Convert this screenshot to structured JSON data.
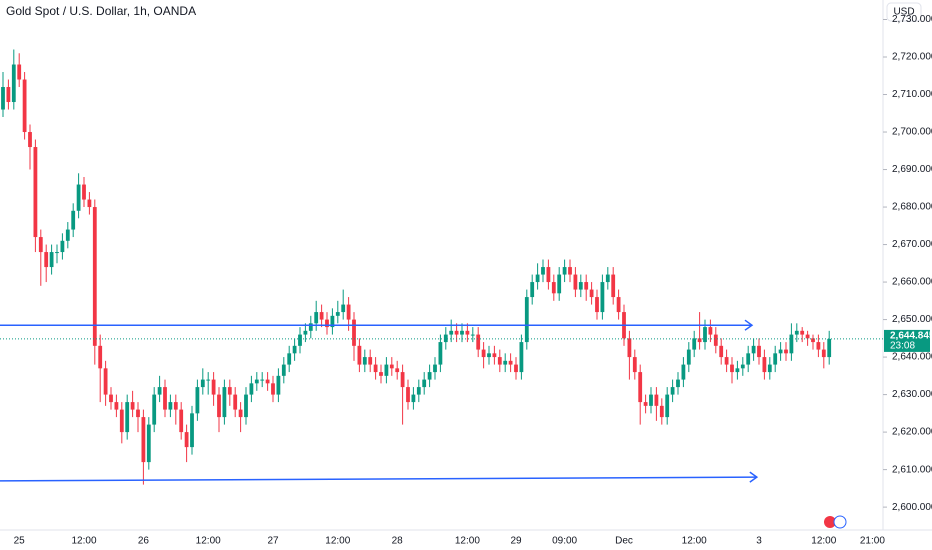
{
  "chart_data": {
    "type": "candlestick",
    "title": "Gold Spot / U.S. Dollar, 1h, OANDA",
    "currency": "USD",
    "up_color": "#089981",
    "down_color": "#f23645",
    "drawing_color": "#2962ff",
    "categories": [
      null,
      null,
      null,
      "25",
      null,
      null,
      null,
      null,
      null,
      null,
      null,
      null,
      null,
      null,
      null,
      "12:00",
      null,
      null,
      null,
      null,
      null,
      null,
      null,
      null,
      null,
      null,
      "26",
      null,
      null,
      null,
      null,
      null,
      null,
      null,
      null,
      null,
      null,
      null,
      "12:00",
      null,
      null,
      null,
      null,
      null,
      null,
      null,
      null,
      null,
      null,
      null,
      "27",
      null,
      null,
      null,
      null,
      null,
      null,
      null,
      null,
      null,
      null,
      null,
      "12:00",
      null,
      null,
      null,
      null,
      null,
      null,
      null,
      null,
      null,
      null,
      "28",
      null,
      null,
      null,
      null,
      null,
      null,
      null,
      null,
      null,
      null,
      null,
      null,
      "12:00",
      null,
      null,
      null,
      null,
      null,
      null,
      null,
      null,
      "29",
      null,
      null,
      null,
      null,
      null,
      null,
      null,
      null,
      "09:00",
      null,
      null,
      null,
      null,
      null,
      null,
      null,
      null,
      null,
      null,
      "Dec",
      null,
      null,
      null,
      null,
      null,
      null,
      null,
      null,
      null,
      null,
      null,
      null,
      "12:00",
      null,
      null,
      null,
      null,
      null,
      null,
      null,
      null,
      null,
      null,
      null,
      "3",
      null,
      null,
      null,
      null,
      null,
      null,
      null,
      null,
      null,
      null,
      null,
      "12:00",
      null,
      null,
      null,
      null,
      null,
      null,
      null,
      null,
      "21:00",
      null
    ],
    "open": [
      2706,
      2712,
      2708,
      2718,
      2714,
      2700,
      2696,
      2672,
      2668,
      2664,
      2668,
      2668,
      2671,
      2674,
      2679,
      2686,
      2682,
      2680,
      2643,
      2637,
      2630,
      2628,
      2626,
      2620,
      2628,
      2626,
      2624,
      2612,
      2622,
      2630,
      2632,
      2626,
      2628,
      2626,
      2620,
      2616,
      2625,
      2632,
      2634,
      2634,
      2630,
      2624,
      2632,
      2630,
      2626,
      2624,
      2630,
      2633,
      2634,
      2634,
      2633,
      2630,
      2635,
      2638,
      2641,
      2643,
      2646,
      2647,
      2649,
      2652,
      2650,
      2648,
      2651,
      2652,
      2654,
      2650,
      2643,
      2638,
      2640,
      2638,
      2636,
      2635,
      2638,
      2637,
      2636,
      2632,
      2628,
      2630,
      2632,
      2634,
      2636,
      2638,
      2644,
      2646,
      2647,
      2646,
      2647,
      2646,
      2646,
      2642,
      2640,
      2641,
      2640,
      2638,
      2639,
      2638,
      2636,
      2644,
      2656,
      2660,
      2662,
      2664,
      2660,
      2657,
      2662,
      2664,
      2662,
      2658,
      2660,
      2658,
      2656,
      2652,
      2660,
      2662,
      2656,
      2652,
      2645,
      2640,
      2636,
      2628,
      2627,
      2630,
      2627,
      2624,
      2630,
      2632,
      2634,
      2638,
      2642,
      2645,
      2644,
      2648,
      2646,
      2643,
      2640,
      2638,
      2636,
      2637,
      2638,
      2641,
      2643,
      2640,
      2636,
      2638,
      2641,
      2642,
      2641,
      2646,
      2647,
      2646,
      2645,
      2644,
      2642,
      2640,
      null,
      null,
      null,
      null,
      null,
      null,
      null,
      null,
      null
    ],
    "high": [
      2716,
      2714,
      2722,
      2721,
      2716,
      2702,
      2698,
      2674,
      2670,
      2670,
      2670,
      2673,
      2676,
      2681,
      2689,
      2688,
      2684,
      2682,
      2646,
      2639,
      2632,
      2630,
      2628,
      2630,
      2631,
      2628,
      2626,
      2624,
      2632,
      2635,
      2634,
      2630,
      2630,
      2628,
      2622,
      2627,
      2634,
      2637,
      2636,
      2636,
      2632,
      2634,
      2634,
      2632,
      2628,
      2632,
      2635,
      2636,
      2636,
      2636,
      2635,
      2637,
      2640,
      2643,
      2645,
      2648,
      2649,
      2651,
      2655,
      2654,
      2652,
      2653,
      2655,
      2658,
      2656,
      2652,
      2645,
      2642,
      2642,
      2640,
      2638,
      2640,
      2640,
      2639,
      2638,
      2634,
      2632,
      2634,
      2636,
      2638,
      2640,
      2646,
      2648,
      2650,
      2649,
      2649,
      2649,
      2648,
      2648,
      2644,
      2643,
      2643,
      2642,
      2641,
      2641,
      2640,
      2646,
      2658,
      2662,
      2665,
      2666,
      2666,
      2662,
      2664,
      2666,
      2666,
      2664,
      2662,
      2662,
      2660,
      2658,
      2662,
      2664,
      2664,
      2658,
      2654,
      2647,
      2642,
      2638,
      2630,
      2632,
      2632,
      2629,
      2632,
      2634,
      2636,
      2640,
      2644,
      2647,
      2652,
      2650,
      2650,
      2648,
      2645,
      2642,
      2640,
      2639,
      2640,
      2643,
      2645,
      2645,
      2642,
      2640,
      2643,
      2644,
      2644,
      2649,
      2649,
      2648,
      2647,
      2646,
      2646,
      2644,
      2647,
      null,
      null,
      null,
      null,
      null,
      null,
      null,
      null,
      null
    ],
    "low": [
      2704,
      2706,
      2706,
      2712,
      2698,
      2690,
      2668,
      2659,
      2660,
      2662,
      2665,
      2666,
      2669,
      2672,
      2677,
      2680,
      2678,
      2638,
      2628,
      2627,
      2626,
      2624,
      2617,
      2618,
      2624,
      2620,
      2606,
      2610,
      2620,
      2628,
      2624,
      2624,
      2622,
      2618,
      2612,
      2614,
      2623,
      2630,
      2630,
      2627,
      2620,
      2622,
      2627,
      2624,
      2620,
      2622,
      2628,
      2631,
      2632,
      2631,
      2628,
      2628,
      2633,
      2636,
      2639,
      2641,
      2644,
      2645,
      2647,
      2648,
      2646,
      2646,
      2649,
      2650,
      2647,
      2639,
      2636,
      2636,
      2636,
      2634,
      2633,
      2633,
      2635,
      2634,
      2622,
      2626,
      2626,
      2628,
      2630,
      2632,
      2634,
      2636,
      2642,
      2644,
      2644,
      2644,
      2644,
      2644,
      2640,
      2637,
      2638,
      2638,
      2636,
      2636,
      2636,
      2634,
      2634,
      2642,
      2654,
      2658,
      2660,
      2658,
      2655,
      2655,
      2660,
      2660,
      2656,
      2656,
      2655,
      2654,
      2650,
      2650,
      2658,
      2654,
      2650,
      2643,
      2634,
      2634,
      2622,
      2625,
      2625,
      2623,
      2622,
      2622,
      2628,
      2630,
      2632,
      2636,
      2640,
      2642,
      2642,
      2644,
      2641,
      2638,
      2636,
      2633,
      2634,
      2635,
      2636,
      2639,
      2638,
      2634,
      2634,
      2636,
      2639,
      2639,
      2639,
      2644,
      2644,
      2643,
      2642,
      2640,
      2637,
      2638,
      null,
      null,
      null,
      null,
      null,
      null,
      null,
      null,
      null
    ],
    "close": [
      2712,
      2708,
      2718,
      2714,
      2700,
      2696,
      2672,
      2668,
      2664,
      2668,
      2668,
      2671,
      2674,
      2679,
      2686,
      2682,
      2680,
      2643,
      2637,
      2630,
      2628,
      2626,
      2620,
      2628,
      2626,
      2624,
      2612,
      2622,
      2630,
      2632,
      2626,
      2628,
      2626,
      2620,
      2616,
      2625,
      2632,
      2634,
      2634,
      2630,
      2624,
      2632,
      2630,
      2626,
      2624,
      2630,
      2633,
      2634,
      2634,
      2633,
      2630,
      2635,
      2638,
      2641,
      2643,
      2646,
      2647,
      2649,
      2652,
      2650,
      2648,
      2651,
      2652,
      2654,
      2650,
      2643,
      2638,
      2640,
      2638,
      2636,
      2635,
      2638,
      2637,
      2636,
      2632,
      2628,
      2630,
      2632,
      2634,
      2636,
      2638,
      2644,
      2646,
      2647,
      2646,
      2647,
      2646,
      2646,
      2642,
      2640,
      2641,
      2640,
      2638,
      2639,
      2638,
      2636,
      2644,
      2656,
      2660,
      2662,
      2664,
      2660,
      2657,
      2662,
      2664,
      2662,
      2658,
      2660,
      2658,
      2656,
      2652,
      2660,
      2662,
      2656,
      2652,
      2645,
      2640,
      2636,
      2628,
      2627,
      2630,
      2627,
      2624,
      2630,
      2632,
      2634,
      2638,
      2642,
      2645,
      2644,
      2648,
      2646,
      2643,
      2640,
      2638,
      2636,
      2637,
      2638,
      2641,
      2643,
      2640,
      2636,
      2638,
      2641,
      2642,
      2641,
      2646,
      2647,
      2646,
      2645,
      2644,
      2642,
      2640,
      2644.845,
      null,
      null,
      null,
      null,
      null,
      null,
      null,
      null,
      null
    ],
    "trend_lines": [
      {
        "x": [
          -1,
          138.7
        ],
        "y": [
          2648.5,
          2648.5
        ]
      },
      {
        "x": [
          -1,
          139.6
        ],
        "y": [
          2607,
          2608
        ]
      }
    ],
    "last_price": {
      "value": 2644.845,
      "label": "2,644.845"
    },
    "countdown": "23:08",
    "ylim": [
      2593.9,
      2735.2
    ],
    "yticks": [
      {
        "value": 2600,
        "label": "2,600.000"
      },
      {
        "value": 2610,
        "label": "2,610.000"
      },
      {
        "value": 2620,
        "label": "2,620.000"
      },
      {
        "value": 2630,
        "label": "2,630.000"
      },
      {
        "value": 2640,
        "label": "2,640.000"
      },
      {
        "value": 2650,
        "label": "2,650.000"
      },
      {
        "value": 2660,
        "label": "2,660.000"
      },
      {
        "value": 2670,
        "label": "2,670.000"
      },
      {
        "value": 2680,
        "label": "2,680.000"
      },
      {
        "value": 2690,
        "label": "2,690.000"
      },
      {
        "value": 2700,
        "label": "2,700.000"
      },
      {
        "value": 2710,
        "label": "2,710.000"
      },
      {
        "value": 2720,
        "label": "2,720.000"
      },
      {
        "value": 2730,
        "label": "2,730.000"
      }
    ]
  }
}
